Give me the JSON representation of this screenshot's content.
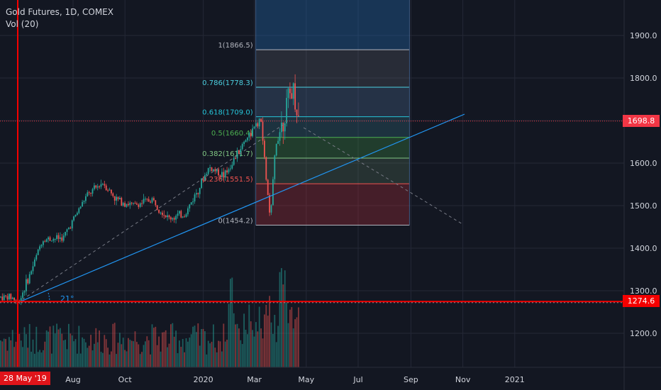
{
  "header": {
    "symbol": "Gold Futures, 1D, COMEX",
    "volume_label": "Vol (20)"
  },
  "price_axis": {
    "ticks": [
      "1900.0",
      "1800.0",
      "1700.0",
      "1600.0",
      "1500.0",
      "1400.0",
      "1300.0",
      "1200.0"
    ],
    "current_price": "1698.8",
    "horizontal_line_price": "1274.6"
  },
  "time_axis": {
    "ticks": [
      "Aug",
      "Oct",
      "2020",
      "Mar",
      "May",
      "Jul",
      "Sep",
      "Nov",
      "2021"
    ],
    "cursor_date": "28 May '19"
  },
  "fibonacci": {
    "levels": [
      {
        "ratio": 1,
        "price": 1866.5,
        "label": "1(1866.5)"
      },
      {
        "ratio": 0.786,
        "price": 1778.3,
        "label": "0.786(1778.3)"
      },
      {
        "ratio": 0.618,
        "price": 1709.0,
        "label": "0.618(1709.0)"
      },
      {
        "ratio": 0.5,
        "price": 1660.4,
        "label": "0.5(1660.4)"
      },
      {
        "ratio": 0.382,
        "price": 1611.7,
        "label": "0.382(1611.7)"
      },
      {
        "ratio": 0.236,
        "price": 1551.5,
        "label": "0.236(1551.5)"
      },
      {
        "ratio": 0,
        "price": 1454.2,
        "label": "0(1454.2)"
      }
    ]
  },
  "trendline_angle_label": "21°",
  "colors": {
    "background": "#131722",
    "grid": "#242836",
    "up": "#26a69a",
    "down": "#ef5350",
    "trendline": "#2196f3",
    "hline": "#f50000",
    "price_tag": "#f23645",
    "axis_text": "#d1d4dc"
  },
  "chart_data": {
    "type": "candlestick",
    "title": "Gold Futures, 1D, COMEX",
    "ylim": [
      1150,
      1970
    ],
    "x_ticks": [
      "Aug",
      "Oct",
      "2020",
      "Mar",
      "May",
      "Jul",
      "Sep",
      "Nov",
      "2021"
    ],
    "price_path": [
      [
        "2019-05-20",
        1285
      ],
      [
        "2019-05-28",
        1272
      ],
      [
        "2019-06-10",
        1335
      ],
      [
        "2019-06-25",
        1420
      ],
      [
        "2019-07-20",
        1425
      ],
      [
        "2019-08-15",
        1520
      ],
      [
        "2019-09-04",
        1555
      ],
      [
        "2019-09-20",
        1515
      ],
      [
        "2019-10-10",
        1500
      ],
      [
        "2019-11-01",
        1515
      ],
      [
        "2019-11-20",
        1470
      ],
      [
        "2019-12-10",
        1480
      ],
      [
        "2020-01-07",
        1590
      ],
      [
        "2020-01-25",
        1570
      ],
      [
        "2020-02-20",
        1660
      ],
      [
        "2020-03-08",
        1700
      ],
      [
        "2020-03-19",
        1460
      ],
      [
        "2020-03-25",
        1640
      ],
      [
        "2020-04-14",
        1780
      ],
      [
        "2020-04-22",
        1700
      ]
    ],
    "current_price": 1698.8,
    "horizontal_level": 1274.6,
    "series": [
      {
        "name": "Vol (20)",
        "type": "volume"
      }
    ]
  }
}
